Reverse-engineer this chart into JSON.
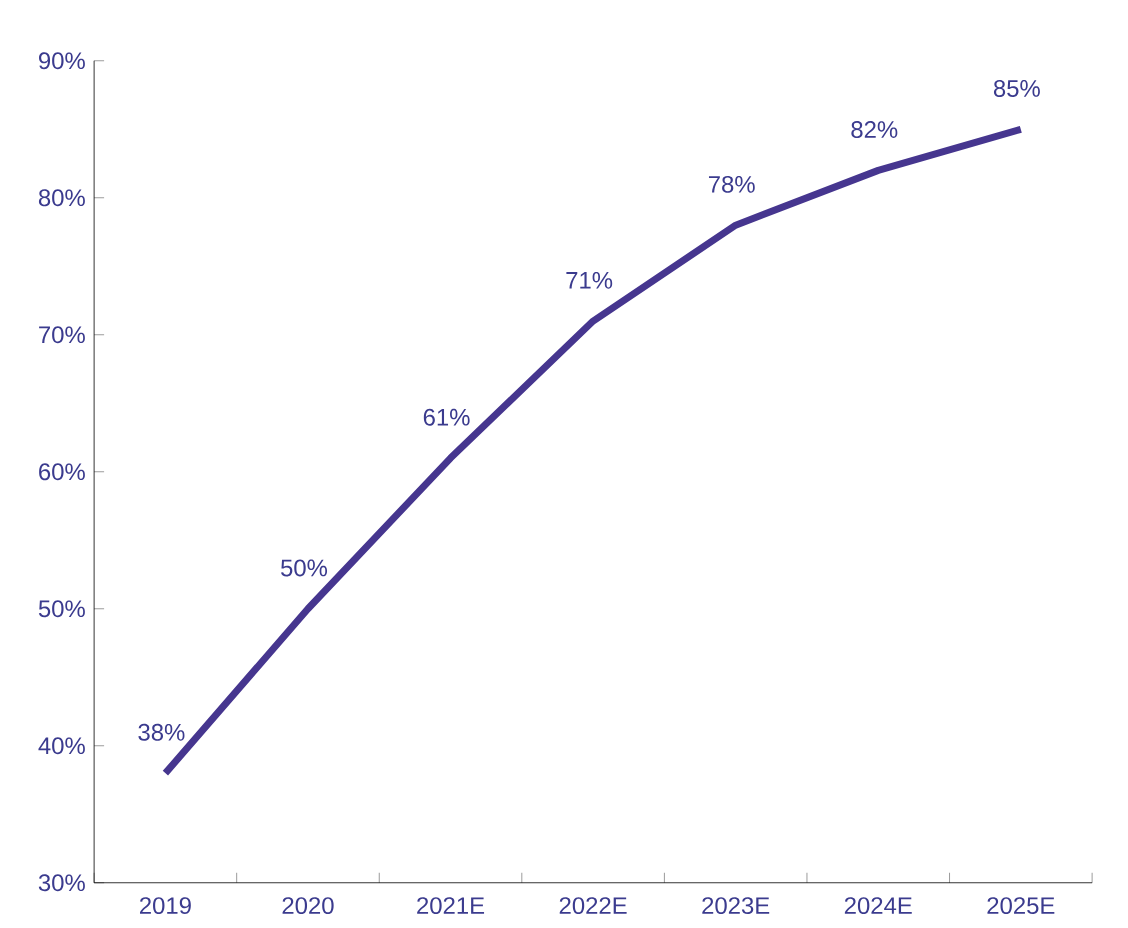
{
  "chart_data": {
    "type": "line",
    "categories": [
      "2019",
      "2020",
      "2021E",
      "2022E",
      "2023E",
      "2024E",
      "2025E"
    ],
    "series": [
      {
        "color": "#46368f",
        "values": [
          38,
          50,
          61,
          71,
          78,
          82,
          85
        ],
        "value_labels": [
          "38%",
          "50%",
          "61%",
          "71%",
          "78%",
          "82%",
          "85%"
        ]
      }
    ],
    "ylim": [
      30,
      90
    ],
    "yticks": [
      {
        "value": 30,
        "label": "30%"
      },
      {
        "value": 40,
        "label": "40%"
      },
      {
        "value": 50,
        "label": "50%"
      },
      {
        "value": 60,
        "label": "60%"
      },
      {
        "value": 70,
        "label": "70%"
      },
      {
        "value": 80,
        "label": "80%"
      },
      {
        "value": 90,
        "label": "90%"
      }
    ],
    "marker": "none",
    "line_style": "solid"
  }
}
